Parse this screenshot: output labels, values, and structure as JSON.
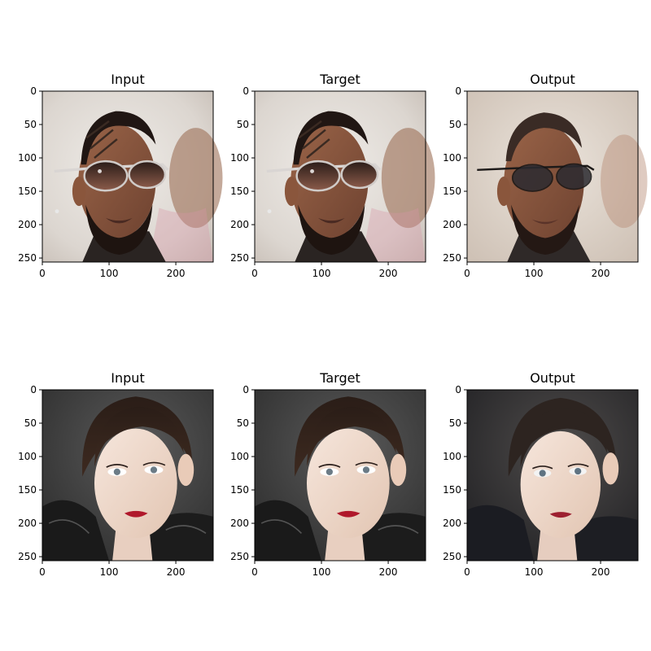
{
  "figure": {
    "rows": [
      {
        "panels": [
          {
            "title": "Input",
            "image": "man-with-sunglasses-photo"
          },
          {
            "title": "Target",
            "image": "man-with-sunglasses-photo"
          },
          {
            "title": "Output",
            "image": "man-with-sunglasses-generated"
          }
        ]
      },
      {
        "panels": [
          {
            "title": "Input",
            "image": "woman-portrait-photo"
          },
          {
            "title": "Target",
            "image": "woman-portrait-photo"
          },
          {
            "title": "Output",
            "image": "woman-portrait-generated"
          }
        ]
      }
    ],
    "xticks": [
      "0",
      "100",
      "200"
    ],
    "yticks": [
      "0",
      "50",
      "100",
      "150",
      "200",
      "250"
    ]
  }
}
